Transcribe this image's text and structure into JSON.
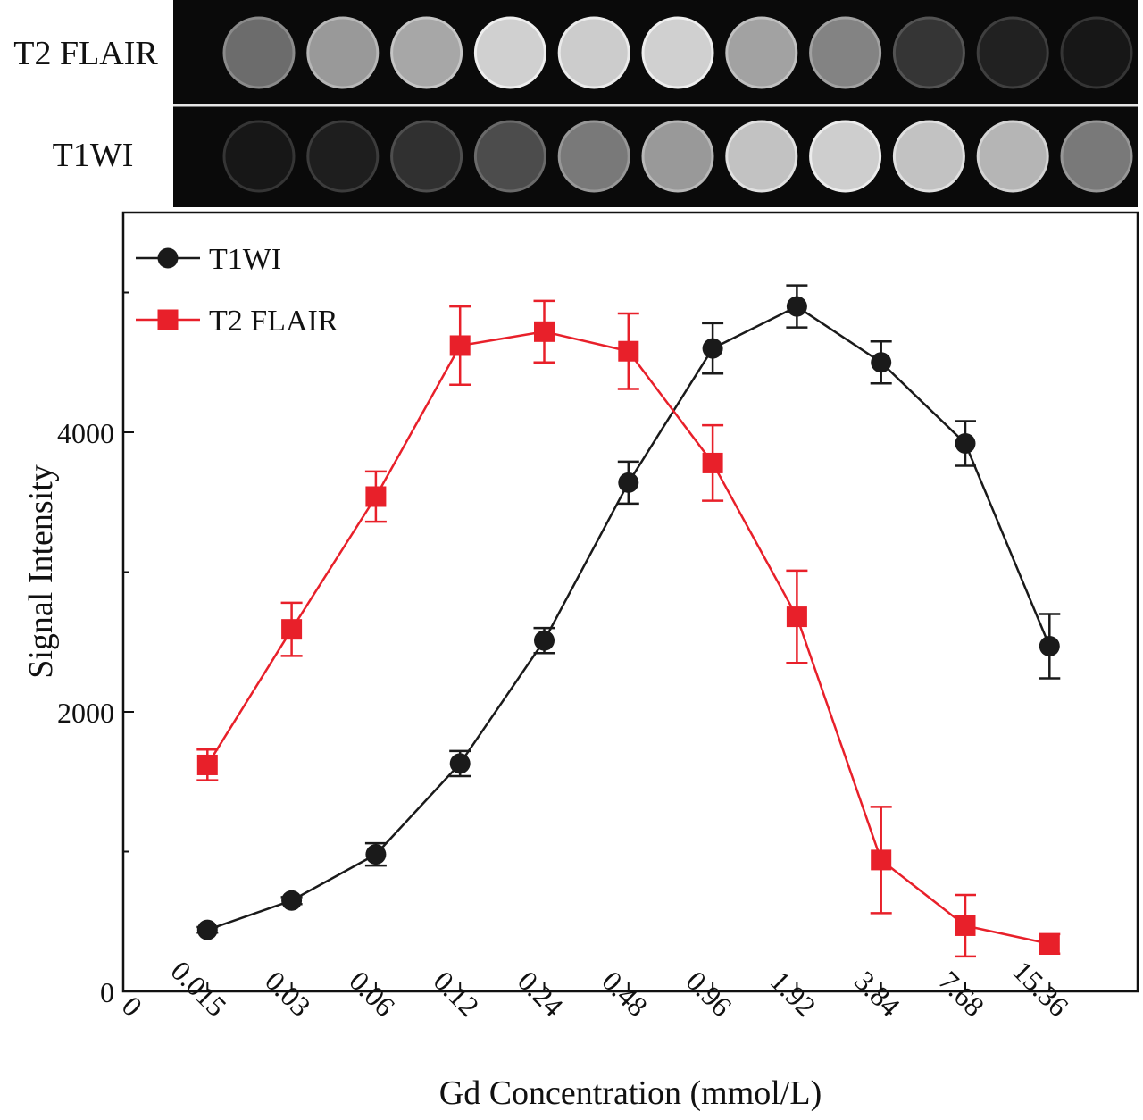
{
  "strip": {
    "rows": [
      {
        "label": "T2 FLAIR",
        "intensities": [
          0.42,
          0.62,
          0.68,
          0.86,
          0.84,
          0.86,
          0.66,
          0.52,
          0.18,
          0.09,
          0.05
        ]
      },
      {
        "label": "T1WI",
        "intensities": [
          0.05,
          0.08,
          0.16,
          0.28,
          0.48,
          0.62,
          0.8,
          0.85,
          0.8,
          0.74,
          0.48
        ]
      }
    ]
  },
  "chart_data": {
    "type": "line",
    "xlabel": "Gd Concentration (mmol/L)",
    "ylabel": "Signal Intensity",
    "x_ticks": [
      "0",
      "0.015",
      "0.03",
      "0.06",
      "0.12",
      "0.24",
      "0.48",
      "0.96",
      "1.92",
      "3.84",
      "7.68",
      "15.36"
    ],
    "categories": [
      "0.015",
      "0.03",
      "0.06",
      "0.12",
      "0.24",
      "0.48",
      "0.96",
      "1.92",
      "3.84",
      "7.68",
      "15.36"
    ],
    "y_ticks": [
      "0",
      "2000",
      "4000"
    ],
    "ylim": [
      0,
      5500
    ],
    "legend_position": "top-left",
    "grid": false,
    "series": [
      {
        "name": "T1WI",
        "color": "#1a1a1a",
        "marker": "circle",
        "values": [
          440,
          650,
          980,
          1630,
          2510,
          3640,
          4600,
          4900,
          4500,
          3920,
          2470
        ],
        "errors": [
          20,
          25,
          80,
          90,
          90,
          150,
          180,
          150,
          150,
          160,
          230
        ]
      },
      {
        "name": "T2 FLAIR",
        "color": "#e8202a",
        "marker": "square",
        "values": [
          1620,
          2590,
          3540,
          4620,
          4720,
          4580,
          3780,
          2680,
          940,
          470,
          340
        ],
        "errors": [
          110,
          190,
          180,
          280,
          220,
          270,
          270,
          330,
          380,
          220,
          70
        ]
      }
    ]
  }
}
